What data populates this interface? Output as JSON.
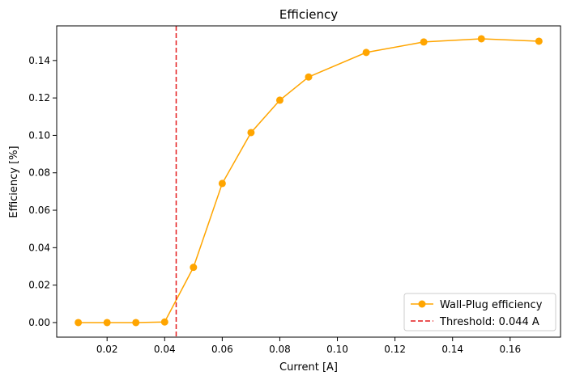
{
  "chart_data": {
    "type": "line",
    "title": "Efficiency",
    "xlabel": "Current [A]",
    "ylabel": "Efficiency [%]",
    "xlim": [
      0.0025,
      0.1775
    ],
    "ylim": [
      -0.0078,
      0.1585
    ],
    "xticks": [
      0.02,
      0.04,
      0.06,
      0.08,
      0.1,
      0.12,
      0.14,
      0.16
    ],
    "xtick_labels": [
      "0.02",
      "0.04",
      "0.06",
      "0.08",
      "0.10",
      "0.12",
      "0.14",
      "0.16"
    ],
    "yticks": [
      0.0,
      0.02,
      0.04,
      0.06,
      0.08,
      0.1,
      0.12,
      0.14
    ],
    "ytick_labels": [
      "0.00",
      "0.02",
      "0.04",
      "0.06",
      "0.08",
      "0.10",
      "0.12",
      "0.14"
    ],
    "grid": false,
    "legend_position": "lower-right",
    "series": [
      {
        "name": "Wall-Plug efficiency",
        "color": "#ffa500",
        "marker": "circle",
        "x": [
          0.01,
          0.02,
          0.03,
          0.04,
          0.05,
          0.06,
          0.07,
          0.08,
          0.09,
          0.11,
          0.13,
          0.15,
          0.17
        ],
        "y": [
          0.0,
          0.0,
          0.0,
          0.0003,
          0.0295,
          0.0743,
          0.1015,
          0.1188,
          0.1312,
          0.1443,
          0.1499,
          0.1516,
          0.1503
        ]
      }
    ],
    "vlines": [
      {
        "name": "Threshold: 0.044 A",
        "x": 0.044,
        "color": "#e41a1c",
        "style": "dashed"
      }
    ]
  }
}
